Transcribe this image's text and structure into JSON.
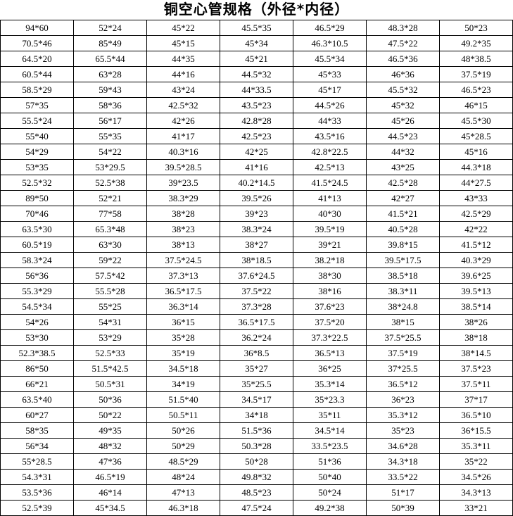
{
  "title": "铜空心管规格（外径*内径）",
  "table": {
    "columns": 7,
    "rows": [
      [
        "94*60",
        "52*24",
        "45*22",
        "45.5*35",
        "46.5*29",
        "48.3*28",
        "50*23"
      ],
      [
        "70.5*46",
        "85*49",
        "45*15",
        "45*34",
        "46.3*10.5",
        "47.5*22",
        "49.2*35"
      ],
      [
        "64.5*20",
        "65.5*44",
        "44*35",
        "45*21",
        "45.5*34",
        "46.5*36",
        "48*38.5"
      ],
      [
        "60.5*44",
        "63*28",
        "44*16",
        "44.5*32",
        "45*33",
        "46*36",
        "37.5*19"
      ],
      [
        "58.5*29",
        "59*43",
        "43*24",
        "44*33.5",
        "45*17",
        "45.5*32",
        "46.5*23"
      ],
      [
        "57*35",
        "58*36",
        "42.5*32",
        "43.5*23",
        "44.5*26",
        "45*32",
        "46*15"
      ],
      [
        "55.5*24",
        "56*17",
        "42*26",
        "42.8*28",
        "44*33",
        "45*26",
        "45.5*30"
      ],
      [
        "55*40",
        "55*35",
        "41*17",
        "42.5*23",
        "43.5*16",
        "44.5*23",
        "45*28.5"
      ],
      [
        "54*29",
        "54*22",
        "40.3*16",
        "42*25",
        "42.8*22.5",
        "44*32",
        "45*16"
      ],
      [
        "53*35",
        "53*29.5",
        "39.5*28.5",
        "41*16",
        "42.5*13",
        "43*25",
        "44.3*18"
      ],
      [
        "52.5*32",
        "52.5*38",
        "39*23.5",
        "40.2*14.5",
        "41.5*24.5",
        "42.5*28",
        "44*27.5"
      ],
      [
        "89*50",
        "52*21",
        "38.3*29",
        "39.5*26",
        "41*13",
        "42*27",
        "43*33"
      ],
      [
        "70*46",
        "77*58",
        "38*28",
        "39*23",
        "40*30",
        "41.5*21",
        "42.5*29"
      ],
      [
        "63.5*30",
        "65.3*48",
        "38*23",
        "38.3*24",
        "39.5*19",
        "40.5*28",
        "42*22"
      ],
      [
        "60.5*19",
        "63*30",
        "38*13",
        "38*27",
        "39*21",
        "39.8*15",
        "41.5*12"
      ],
      [
        "58.3*24",
        "59*22",
        "37.5*24.5",
        "38*18.5",
        "38.2*18",
        "39.5*17.5",
        "40.3*29"
      ],
      [
        "56*36",
        "57.5*42",
        "37.3*13",
        "37.6*24.5",
        "38*30",
        "38.5*18",
        "39.6*25"
      ],
      [
        "55.3*29",
        "55.5*28",
        "36.5*17.5",
        "37.5*22",
        "38*16",
        "38.3*11",
        "39.5*13"
      ],
      [
        "54.5*34",
        "55*25",
        "36.3*14",
        "37.3*28",
        "37.6*23",
        "38*24.8",
        "38.5*14"
      ],
      [
        "54*26",
        "54*31",
        "36*15",
        "36.5*17.5",
        "37.5*20",
        "38*15",
        "38*26"
      ],
      [
        "53*30",
        "53*29",
        "35*28",
        "36.2*24",
        "37.3*22.5",
        "37.5*25.5",
        "38*18"
      ],
      [
        "52.3*38.5",
        "52.5*33",
        "35*19",
        "36*8.5",
        "36.5*13",
        "37.5*19",
        "38*14.5"
      ],
      [
        "86*50",
        "51.5*42.5",
        "34.5*18",
        "35*27",
        "36*25",
        "37*25.5",
        "37.5*23"
      ],
      [
        "66*21",
        "50.5*31",
        "34*19",
        "35*25.5",
        "35.3*14",
        "36.5*12",
        "37.5*11"
      ],
      [
        "63.5*40",
        "50*36",
        "51.5*40",
        "34.5*17",
        "35*23.3",
        "36*23",
        "37*17"
      ],
      [
        "60*27",
        "50*22",
        "50.5*11",
        "34*18",
        "35*11",
        "35.3*12",
        "36.5*10"
      ],
      [
        "58*35",
        "49*35",
        "50*26",
        "51.5*36",
        "34.5*14",
        "35*23",
        "36*15.5"
      ],
      [
        "56*34",
        "48*32",
        "50*29",
        "50.3*28",
        "33.5*23.5",
        "34.6*28",
        "35.3*11"
      ],
      [
        "55*28.5",
        "47*36",
        "48.5*29",
        "50*28",
        "51*36",
        "34.3*18",
        "35*22"
      ],
      [
        "54.3*31",
        "46.5*19",
        "48*24",
        "49.8*32",
        "50*40",
        "33.5*22",
        "34.5*26"
      ],
      [
        "53.5*36",
        "46*14",
        "47*13",
        "48.5*23",
        "50*24",
        "51*17",
        "34.3*13"
      ],
      [
        "52.5*39",
        "45*34.5",
        "46.3*18",
        "47.5*24",
        "49.2*38",
        "50*39",
        "33*21"
      ]
    ]
  }
}
